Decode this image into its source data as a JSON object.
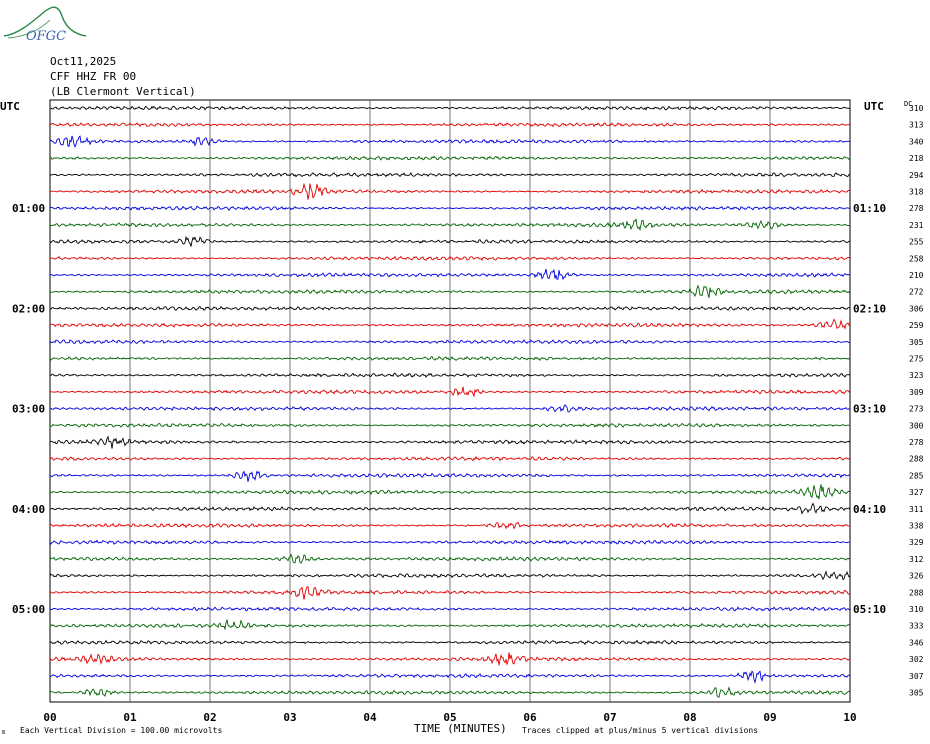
{
  "logo": {
    "text": "OFGC",
    "color": "#2a8a4a"
  },
  "header": {
    "date": "Oct11,2025",
    "station": "CFF HHZ FR 00",
    "location": "(LB  Clermont Vertical)"
  },
  "left_axis_label": "UTC",
  "right_axis_label": "UTC",
  "dc_label": "DC",
  "footer": {
    "division_note": "Each Vertical Division =  100.00 microvolts",
    "clip_note": "Traces clipped at plus/minus 5 vertical divisions"
  },
  "chart_data": {
    "type": "line",
    "title": "",
    "xlabel": "TIME (MINUTES)",
    "ylabel": "",
    "xlim": [
      0,
      10
    ],
    "x_ticks": [
      "00",
      "01",
      "02",
      "03",
      "04",
      "05",
      "06",
      "07",
      "08",
      "09",
      "10"
    ],
    "grid": true,
    "left_hour_labels": [
      {
        "trace": 6,
        "label": "01:00"
      },
      {
        "trace": 12,
        "label": "02:00"
      },
      {
        "trace": 18,
        "label": "03:00"
      },
      {
        "trace": 24,
        "label": "04:00"
      },
      {
        "trace": 30,
        "label": "05:00"
      }
    ],
    "right_hour_labels": [
      {
        "trace": 6,
        "label": "01:10"
      },
      {
        "trace": 12,
        "label": "02:10"
      },
      {
        "trace": 18,
        "label": "03:10"
      },
      {
        "trace": 24,
        "label": "04:10"
      },
      {
        "trace": 30,
        "label": "05:10"
      }
    ],
    "trace_colors": [
      "#000000",
      "#e00000",
      "#0000e0",
      "#006400"
    ],
    "dc_offsets": [
      310,
      313,
      340,
      218,
      294,
      318,
      278,
      231,
      255,
      258,
      210,
      272,
      306,
      259,
      305,
      275,
      323,
      309,
      273,
      300,
      278,
      288,
      285,
      327,
      311,
      338,
      329,
      312,
      326,
      288,
      310,
      333,
      346,
      302,
      307,
      305
    ],
    "events": [
      {
        "trace": 2,
        "minute": 0.3,
        "amp": 5
      },
      {
        "trace": 2,
        "minute": 1.9,
        "amp": 4
      },
      {
        "trace": 5,
        "minute": 3.3,
        "amp": 9
      },
      {
        "trace": 7,
        "minute": 7.3,
        "amp": 5
      },
      {
        "trace": 7,
        "minute": 8.9,
        "amp": 5
      },
      {
        "trace": 8,
        "minute": 1.8,
        "amp": 5
      },
      {
        "trace": 10,
        "minute": 6.3,
        "amp": 7
      },
      {
        "trace": 11,
        "minute": 8.2,
        "amp": 6
      },
      {
        "trace": 13,
        "minute": 9.8,
        "amp": 6
      },
      {
        "trace": 17,
        "minute": 5.2,
        "amp": 5
      },
      {
        "trace": 18,
        "minute": 6.4,
        "amp": 4
      },
      {
        "trace": 20,
        "minute": 0.8,
        "amp": 5
      },
      {
        "trace": 22,
        "minute": 2.5,
        "amp": 6
      },
      {
        "trace": 23,
        "minute": 9.6,
        "amp": 7
      },
      {
        "trace": 24,
        "minute": 9.5,
        "amp": 4
      },
      {
        "trace": 25,
        "minute": 5.7,
        "amp": 4
      },
      {
        "trace": 27,
        "minute": 3.1,
        "amp": 5
      },
      {
        "trace": 28,
        "minute": 9.8,
        "amp": 4
      },
      {
        "trace": 29,
        "minute": 3.2,
        "amp": 6
      },
      {
        "trace": 31,
        "minute": 2.3,
        "amp": 5
      },
      {
        "trace": 33,
        "minute": 0.6,
        "amp": 4
      },
      {
        "trace": 33,
        "minute": 5.7,
        "amp": 6
      },
      {
        "trace": 34,
        "minute": 8.8,
        "amp": 6
      },
      {
        "trace": 35,
        "minute": 0.6,
        "amp": 4
      },
      {
        "trace": 35,
        "minute": 8.4,
        "amp": 5
      }
    ]
  }
}
